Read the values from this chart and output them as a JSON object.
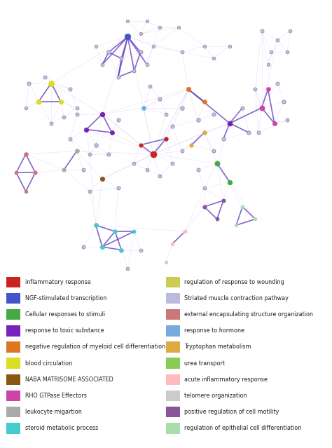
{
  "legend_items_col1": [
    {
      "label": "inflammatory response",
      "color": "#cc2222"
    },
    {
      "label": "NGF-stimulated transcription",
      "color": "#4455cc"
    },
    {
      "label": "Cellular responses to stimuli",
      "color": "#44aa44"
    },
    {
      "label": "response to toxic substance",
      "color": "#7722bb"
    },
    {
      "label": "negative regulation of myeloid cell differentiation",
      "color": "#dd7722"
    },
    {
      "label": "blood circulation",
      "color": "#dddd22"
    },
    {
      "label": "NABA MATRISOME ASSOCIATED",
      "color": "#8B5513"
    },
    {
      "label": "RHO GTPase Effectors",
      "color": "#cc44aa"
    },
    {
      "label": "leukocyte migartion",
      "color": "#aaaaaa"
    },
    {
      "label": "steroid metabolic process",
      "color": "#44cccc"
    }
  ],
  "legend_items_col2": [
    {
      "label": "regulation of response to wounding",
      "color": "#cccc55"
    },
    {
      "label": "Striated muscle contraction pathway",
      "color": "#bbbbdd"
    },
    {
      "label": "external encapsulating structure organization",
      "color": "#cc7777"
    },
    {
      "label": "response to hormone",
      "color": "#77aadd"
    },
    {
      "label": "Tryptophan metabolism",
      "color": "#ddaa44"
    },
    {
      "label": "urea transport",
      "color": "#88cc55"
    },
    {
      "label": "acute inflammatory response",
      "color": "#ffbbbb"
    },
    {
      "label": "telomere organization",
      "color": "#cccccc"
    },
    {
      "label": "positive regulation of cell motility",
      "color": "#885599"
    },
    {
      "label": "regulation of epithelial cell differentiation",
      "color": "#aaddaa"
    }
  ],
  "bg_color": "#ffffff",
  "edge_color_strong": "#5533bb",
  "edge_color_weak": "#ccbbee",
  "node_default_color": "#ccbbee",
  "node_default_border": "#aaaacc"
}
